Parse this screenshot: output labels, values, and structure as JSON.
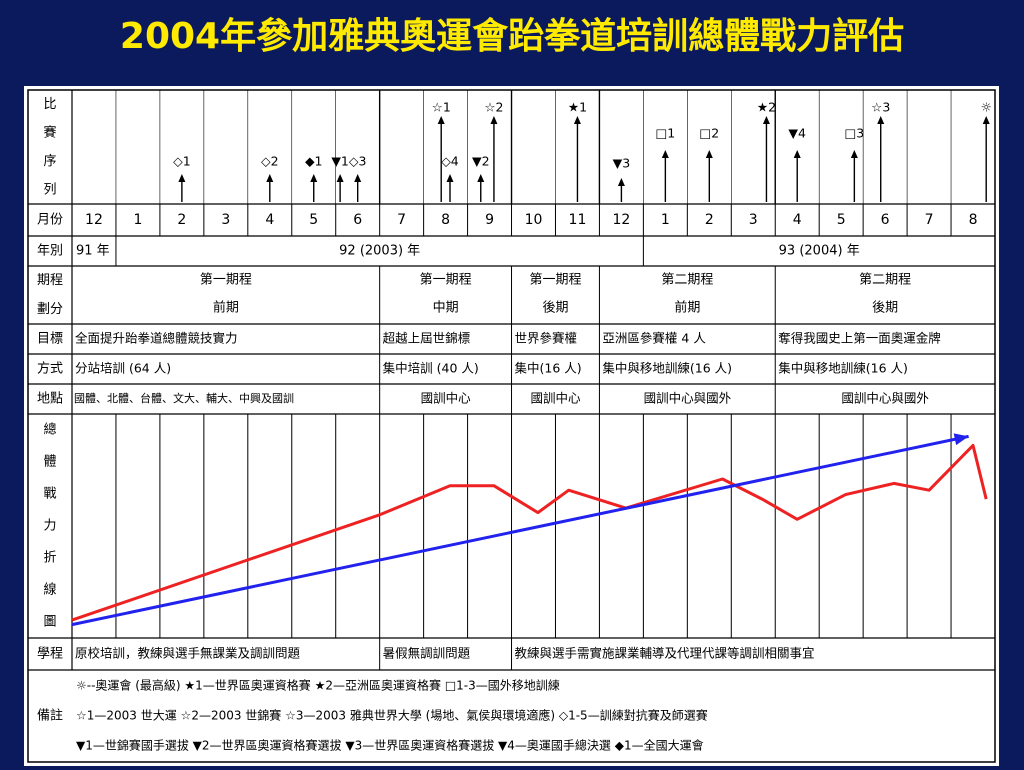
{
  "title": "2004年參加雅典奧運會跆拳道培訓總體戰力評估",
  "row_headers": {
    "competition": "比\n賽\n序\n列",
    "month": "月份",
    "year": "年別",
    "period": "期程\n劃分",
    "goal": "目標",
    "method": "方式",
    "location": "地點",
    "strength": "總\n體\n戰\n力\n折\n線\n圖",
    "study": "學程",
    "notes": "備註"
  },
  "months": [
    "12",
    "1",
    "2",
    "3",
    "4",
    "5",
    "6",
    "7",
    "8",
    "9",
    "10",
    "11",
    "12",
    "1",
    "2",
    "3",
    "4",
    "5",
    "6",
    "7",
    "8"
  ],
  "years": [
    {
      "label": "91 年",
      "start": 0,
      "span": 1,
      "align": "left"
    },
    {
      "label": "92 (2003) 年",
      "start": 1,
      "span": 12,
      "align": "center"
    },
    {
      "label": "93 (2004) 年",
      "start": 13,
      "span": 8,
      "align": "center"
    }
  ],
  "periods": [
    {
      "stage": "第一期程",
      "phase": "前期",
      "start": 0,
      "span": 7
    },
    {
      "stage": "第一期程",
      "phase": "中期",
      "start": 7,
      "span": 3
    },
    {
      "stage": "第一期程",
      "phase": "後期",
      "start": 10,
      "span": 2
    },
    {
      "stage": "第二期程",
      "phase": "前期",
      "start": 12,
      "span": 4
    },
    {
      "stage": "第二期程",
      "phase": "後期",
      "start": 16,
      "span": 5
    }
  ],
  "goals": [
    {
      "text": "全面提升跆拳道總體競技實力",
      "start": 0,
      "span": 7
    },
    {
      "text": "超越上屆世錦標",
      "start": 7,
      "span": 3
    },
    {
      "text": "世界參賽權",
      "start": 10,
      "span": 2
    },
    {
      "text": "亞洲區參賽權 4 人",
      "start": 12,
      "span": 4
    },
    {
      "text": "奪得我國史上第一面奧運金牌",
      "start": 16,
      "span": 5
    }
  ],
  "methods": [
    {
      "text": "分站培訓 (64 人)",
      "start": 0,
      "span": 7
    },
    {
      "text": "集中培訓 (40 人)",
      "start": 7,
      "span": 3
    },
    {
      "text": "集中(16 人)",
      "start": 10,
      "span": 2
    },
    {
      "text": "集中與移地訓練(16 人)",
      "start": 12,
      "span": 4
    },
    {
      "text": "集中與移地訓練(16 人)",
      "start": 16,
      "span": 5
    }
  ],
  "locations": [
    {
      "text": "國體、北體、台體、文大、輔大、中興及國訓",
      "start": 0,
      "span": 7,
      "align": "left"
    },
    {
      "text": "國訓中心",
      "start": 7,
      "span": 3,
      "align": "center"
    },
    {
      "text": "國訓中心",
      "start": 10,
      "span": 2,
      "align": "center"
    },
    {
      "text": "國訓中心與國外",
      "start": 12,
      "span": 4,
      "align": "center"
    },
    {
      "text": "國訓中心與國外",
      "start": 16,
      "span": 5,
      "align": "center"
    }
  ],
  "studies": [
    {
      "text": "原校培訓，教練與選手無課業及調訓問題",
      "start": 0,
      "span": 7
    },
    {
      "text": "暑假無調訓問題",
      "start": 7,
      "span": 3
    },
    {
      "text": "教練與選手需實施課業輔導及代理代課等調訓相關事宜",
      "start": 10,
      "span": 11
    }
  ],
  "events": [
    {
      "label": "◇1",
      "month": 2,
      "level": "low"
    },
    {
      "label": "◇2",
      "month": 4,
      "level": "low"
    },
    {
      "label": "◆1",
      "month": 5,
      "level": "low"
    },
    {
      "label": "▼1",
      "month": 5.6,
      "level": "low"
    },
    {
      "label": "◇3",
      "month": 6,
      "level": "low"
    },
    {
      "label": "☆1",
      "month": 7.9,
      "level": "high"
    },
    {
      "label": "◇4",
      "month": 8.1,
      "level": "low"
    },
    {
      "label": "▼2",
      "month": 8.8,
      "level": "low"
    },
    {
      "label": "☆2",
      "month": 9.1,
      "level": "high"
    },
    {
      "label": "★1",
      "month": 11,
      "level": "high"
    },
    {
      "label": "▼3",
      "month": 12,
      "level": "lower"
    },
    {
      "label": "□1",
      "month": 13,
      "level": "mid"
    },
    {
      "label": "□2",
      "month": 14,
      "level": "mid"
    },
    {
      "label": "★2",
      "month": 15.3,
      "level": "high"
    },
    {
      "label": "▼4",
      "month": 16,
      "level": "mid"
    },
    {
      "label": "□3",
      "month": 17.3,
      "level": "mid"
    },
    {
      "label": "☆3",
      "month": 17.9,
      "level": "high"
    },
    {
      "label": "☼",
      "month": 20.3,
      "level": "high"
    }
  ],
  "chart_data": {
    "type": "line",
    "x_months_index_range": [
      0,
      21
    ],
    "series": [
      {
        "color": "#ee2222",
        "points": [
          [
            0,
            0.08
          ],
          [
            7,
            0.55
          ],
          [
            8.6,
            0.68
          ],
          [
            9.6,
            0.68
          ],
          [
            10.6,
            0.56
          ],
          [
            11.3,
            0.66
          ],
          [
            12.6,
            0.58
          ],
          [
            14.8,
            0.71
          ],
          [
            15.7,
            0.62
          ],
          [
            16.5,
            0.53
          ],
          [
            17.6,
            0.64
          ],
          [
            18.7,
            0.69
          ],
          [
            19.5,
            0.66
          ],
          [
            20.5,
            0.86
          ],
          [
            20.8,
            0.62
          ]
        ]
      },
      {
        "color": "#2222ee",
        "points": [
          [
            0,
            0.06
          ],
          [
            20.4,
            0.9
          ]
        ]
      }
    ]
  },
  "notes_lines": [
    "☼--奧運會 (最高級)   ★1—世界區奧運資格賽   ★2—亞洲區奧運資格賽   □1-3—國外移地訓練",
    "☆1—2003 世大運   ☆2—2003 世錦賽   ☆3—2003 雅典世界大學 (場地、氣侯與環境適應)   ◇1-5—訓練對抗賽及師選賽",
    "▼1—世錦賽國手選拔 ▼2—世界區奧運資格賽選拔 ▼3—世界區奧運資格賽選拔 ▼4—奧運國手總決選 ◆1—全國大運會"
  ]
}
